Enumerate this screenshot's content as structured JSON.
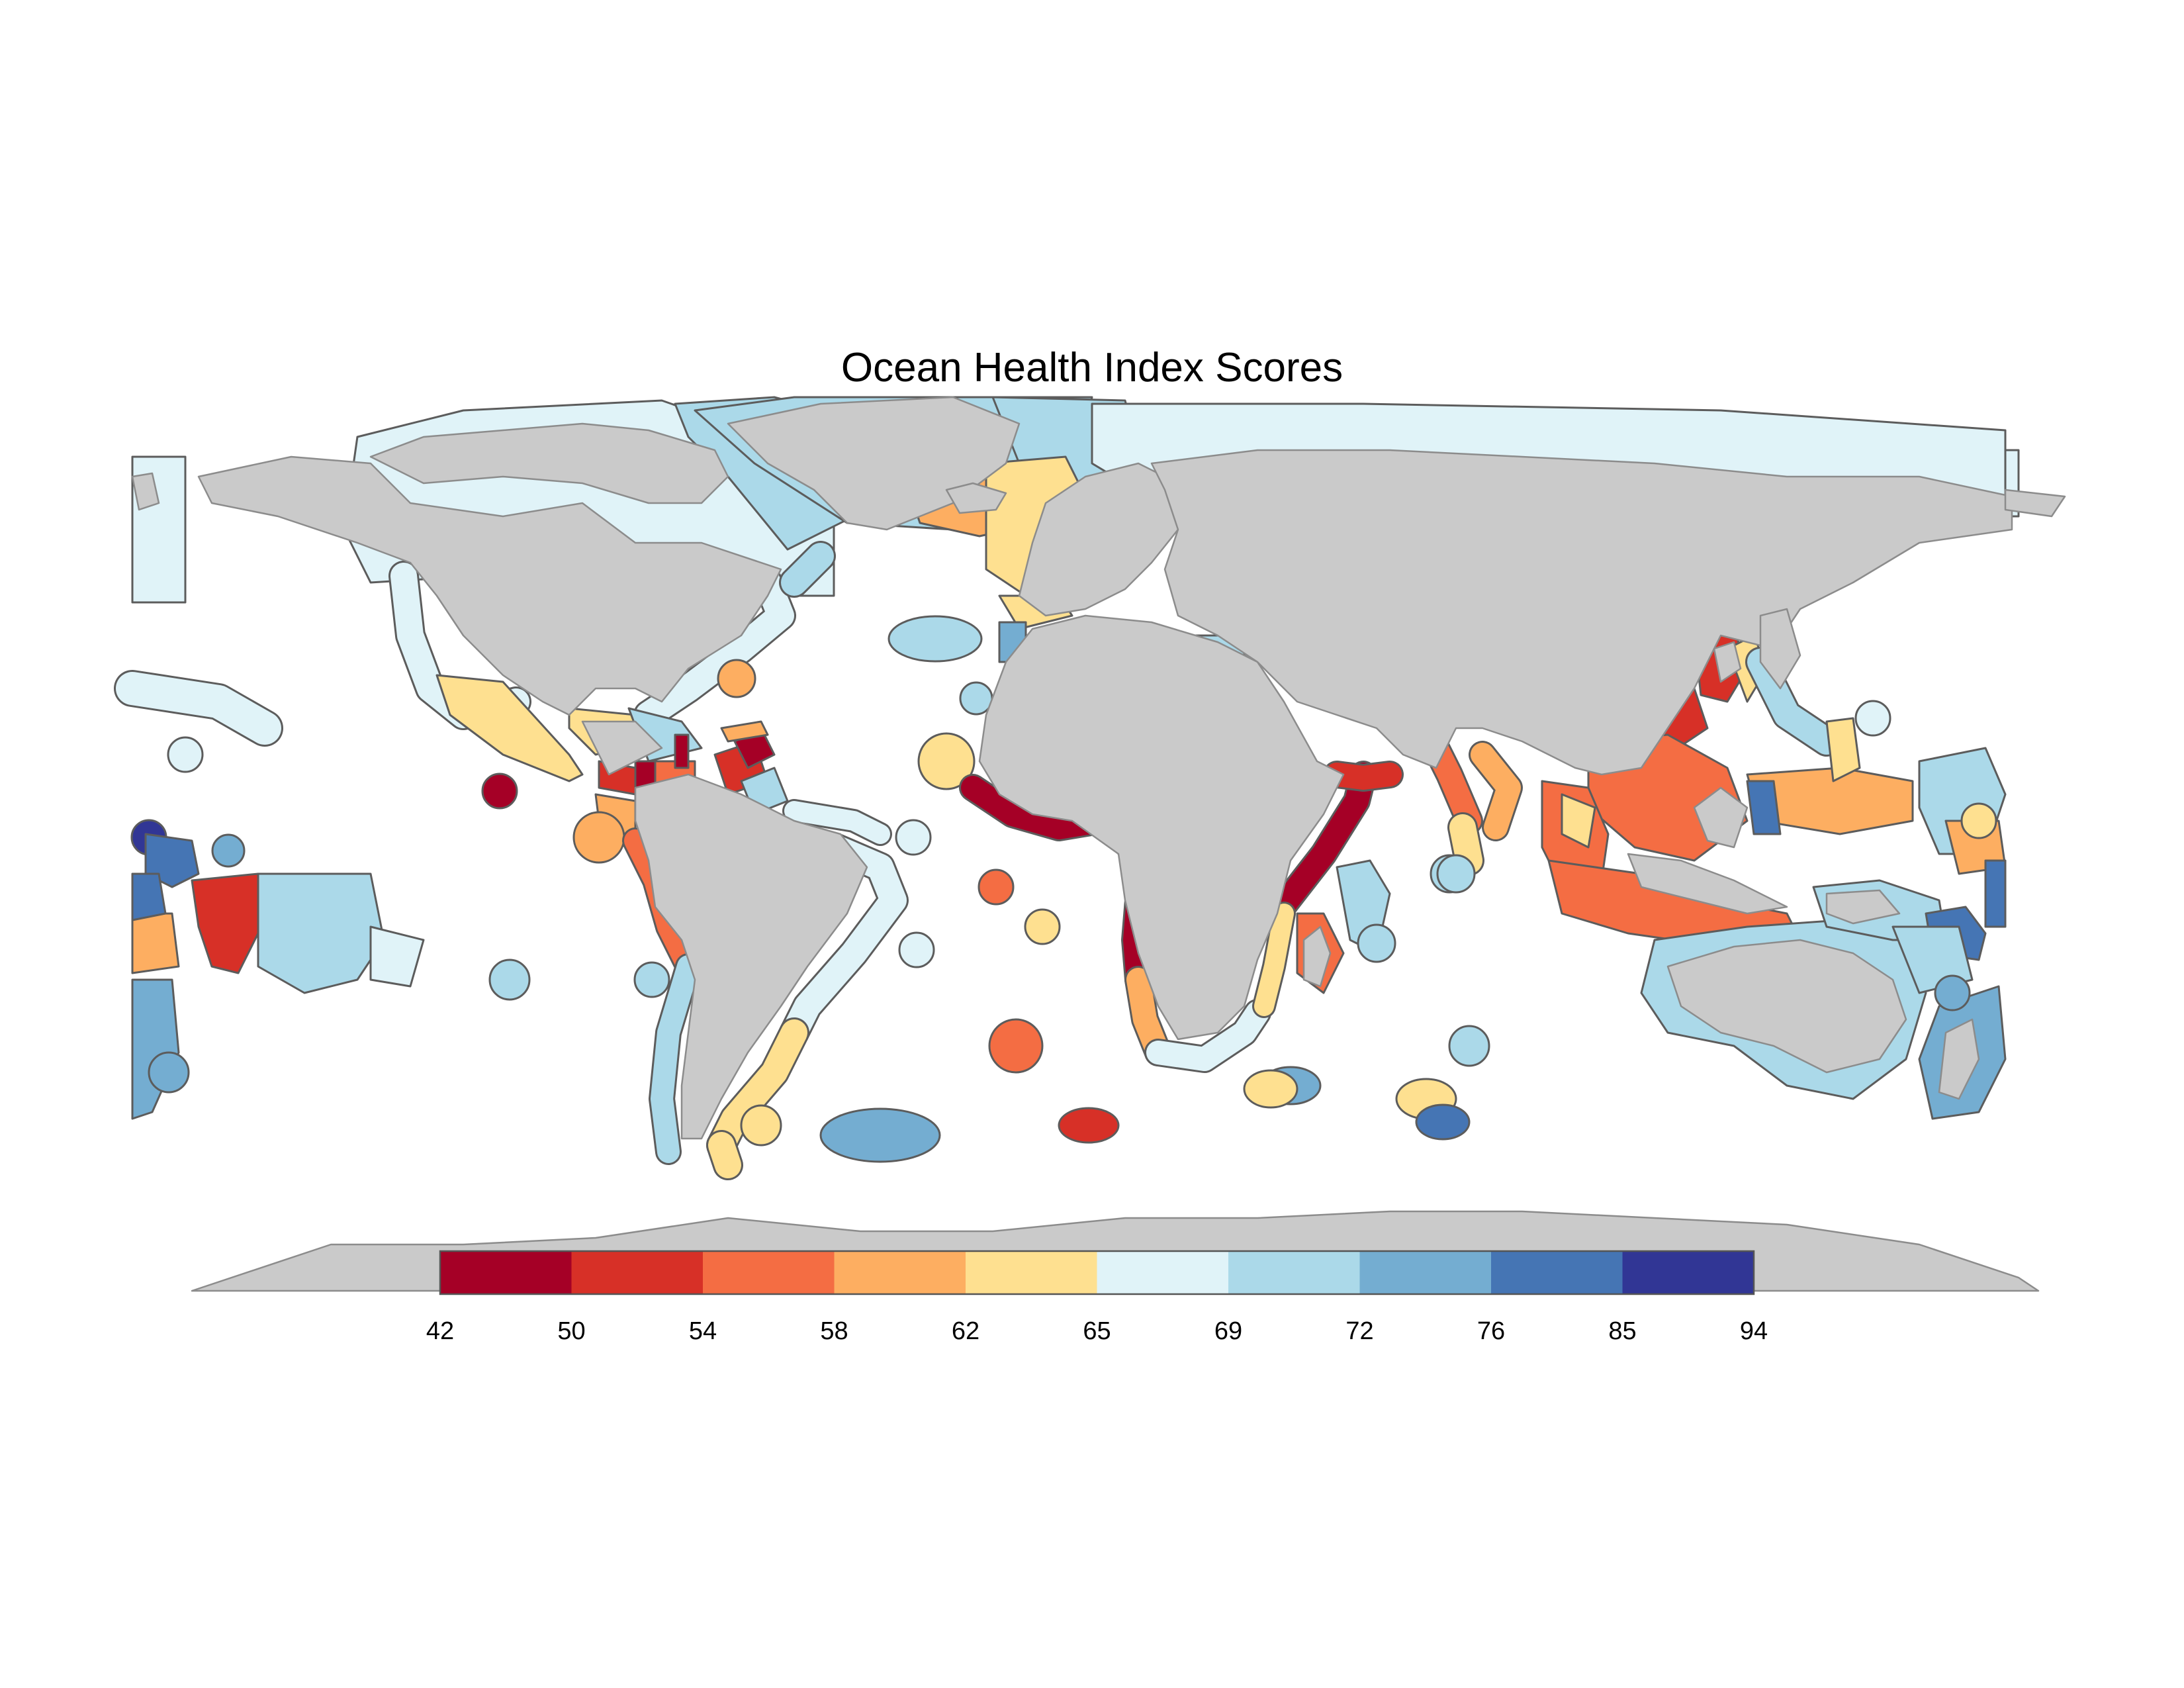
{
  "title": "Ocean Health Index Scores",
  "colors": {
    "land": "#cacaca",
    "land_border": "#8c8c8c",
    "eez_outline": "#5c5c5c",
    "background": "#ffffff"
  },
  "legend": {
    "breaks": [
      "42",
      "50",
      "54",
      "58",
      "62",
      "65",
      "69",
      "72",
      "76",
      "85",
      "94"
    ],
    "colors": [
      "#a50026",
      "#d73027",
      "#f46d43",
      "#fdae61",
      "#fee090",
      "#e0f3f8",
      "#abd9e9",
      "#74add1",
      "#4575b4",
      "#313695"
    ]
  }
}
